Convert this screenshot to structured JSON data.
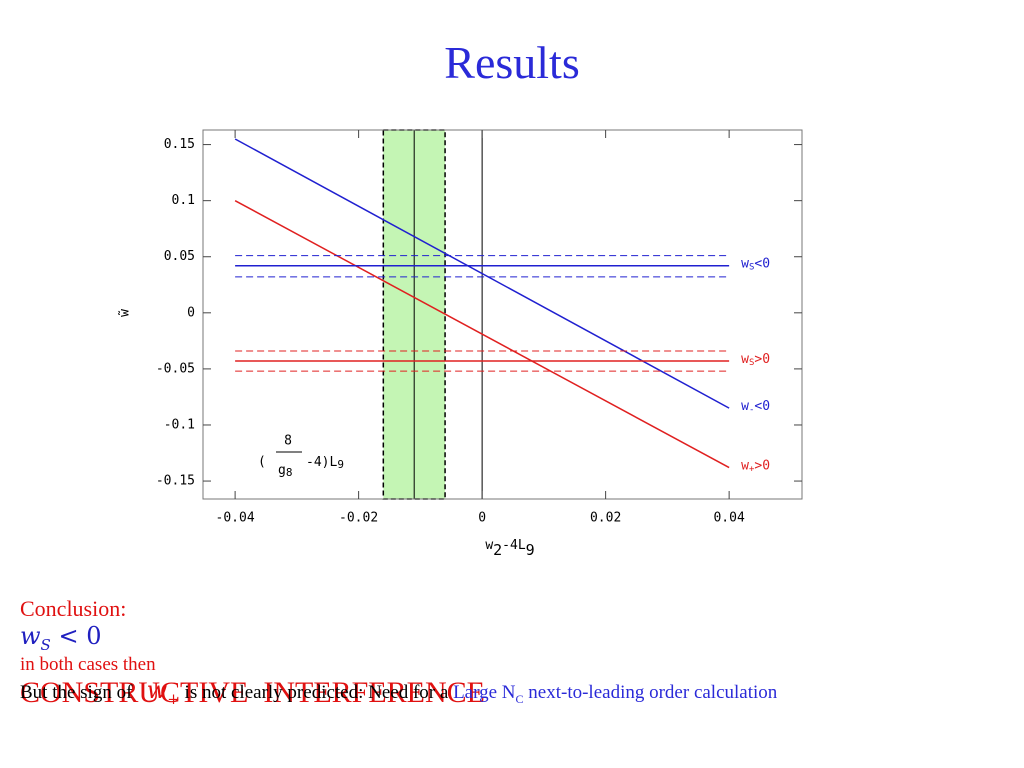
{
  "title": "Results",
  "chart_data": {
    "type": "line",
    "xlabel": {
      "base": "w",
      "sub": "2",
      "mid": "-4L",
      "sub2": "9"
    },
    "ylabel": "w̃",
    "xlim": [
      -0.0452,
      0.0518
    ],
    "ylim": [
      -0.166,
      0.163
    ],
    "xticks": [
      -0.04,
      -0.02,
      0,
      0.02,
      0.04
    ],
    "yticks": [
      -0.15,
      -0.1,
      -0.05,
      0,
      0.05,
      0.1,
      0.15
    ],
    "grid": false,
    "band": {
      "x": [
        -0.016,
        -0.006
      ],
      "center": -0.011,
      "color": "#c4f5b4",
      "label": {
        "open": "(",
        "num": "8",
        "den": "g",
        "den_sub": "8",
        "rest": "-4)L",
        "rest_sub": "9"
      }
    },
    "vlines": [
      0
    ],
    "series": [
      {
        "x": [
          -0.04,
          0.04
        ],
        "values": [
          0.155,
          -0.085
        ],
        "color": "#2020d0",
        "dash": false,
        "label": {
          "base": "w",
          "sub": "-",
          "rest": "<0"
        }
      },
      {
        "x": [
          -0.04,
          0.04
        ],
        "values": [
          0.1,
          -0.138
        ],
        "color": "#e02020",
        "dash": false,
        "label": {
          "base": "w",
          "sub": "+",
          "rest": ">0"
        }
      },
      {
        "x": [
          -0.04,
          0.04
        ],
        "values": [
          0.042,
          0.042
        ],
        "color": "#2020d0",
        "dash": false,
        "label": {
          "base": "w",
          "sub": "S",
          "rest": "<0"
        }
      },
      {
        "x": [
          -0.04,
          0.04
        ],
        "values": [
          0.051,
          0.051
        ],
        "color": "#2020d0",
        "dash": true
      },
      {
        "x": [
          -0.04,
          0.04
        ],
        "values": [
          0.032,
          0.032
        ],
        "color": "#2020d0",
        "dash": true
      },
      {
        "x": [
          -0.04,
          0.04
        ],
        "values": [
          -0.043,
          -0.043
        ],
        "color": "#e02020",
        "dash": false,
        "label": {
          "base": "w",
          "sub": "S",
          "rest": ">0"
        }
      },
      {
        "x": [
          -0.04,
          0.04
        ],
        "values": [
          -0.034,
          -0.034
        ],
        "color": "#e02020",
        "dash": true
      },
      {
        "x": [
          -0.04,
          0.04
        ],
        "values": [
          -0.052,
          -0.052
        ],
        "color": "#e02020",
        "dash": true
      }
    ]
  },
  "conclusion": {
    "label": "Conclusion:",
    "math": {
      "base": "w",
      "sub": "S",
      "rest": "< 0"
    },
    "middle": "in both cases then",
    "emphasis": "CONSTRUCTIVE  INTERFERENCE"
  },
  "note": {
    "lead": "But the sign of",
    "math": {
      "base": "w",
      "sub": "+"
    },
    "middle": "is not clearly predicted: Need for a",
    "highlight": {
      "pre": "Large N",
      "sub": "C",
      "post": "next-to-leading order calculation"
    }
  }
}
